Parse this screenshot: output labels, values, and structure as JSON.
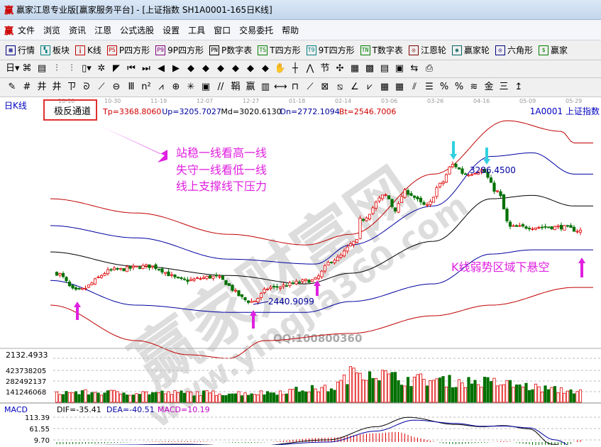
{
  "window": {
    "title": "赢家江恩专业版[赢家服务平台] - [上证指数  SH1A0001-165日K线]",
    "logo": "赢"
  },
  "menu": [
    "文件",
    "浏览",
    "资讯",
    "江恩",
    "公式选股",
    "设置",
    "工具",
    "窗口",
    "交易委托",
    "帮助"
  ],
  "toolbar1": [
    {
      "icon": "table-icon",
      "glyph": "▦",
      "label": "行情",
      "color": "#000080"
    },
    {
      "icon": "blocks-icon",
      "glyph": "▚",
      "label": "板块",
      "color": "#008080"
    },
    {
      "icon": "kline-icon",
      "glyph": "╽",
      "label": "K线",
      "color": "#c00000"
    },
    {
      "icon": "ps-icon",
      "glyph": "PS",
      "label": "P四方形",
      "color": "#c00000"
    },
    {
      "icon": "p9-icon",
      "glyph": "P9",
      "label": "9P四方形",
      "color": "#800080"
    },
    {
      "icon": "pn-icon",
      "glyph": "PN",
      "label": "P数字表",
      "color": "#000"
    },
    {
      "icon": "ts-icon",
      "glyph": "TS",
      "label": "T四方形",
      "color": "#008000"
    },
    {
      "icon": "t9-icon",
      "glyph": "T9",
      "label": "9T四方形",
      "color": "#008080"
    },
    {
      "icon": "tn-icon",
      "glyph": "TN",
      "label": "T数字表",
      "color": "#008000"
    },
    {
      "icon": "gann-wheel-icon",
      "glyph": "◎",
      "label": "江恩轮",
      "color": "#800000"
    },
    {
      "icon": "winner-wheel-icon",
      "glyph": "◉",
      "label": "赢家轮",
      "color": "#006060"
    },
    {
      "icon": "hexagon-icon",
      "glyph": "◎",
      "label": "六角形",
      "color": "#000080"
    },
    {
      "icon": "dollar-icon",
      "glyph": "$",
      "label": "赢家",
      "color": "#008000"
    }
  ],
  "toolbar2": [
    {
      "icon": "period-day-icon",
      "glyph": "日▾"
    },
    {
      "icon": "chart-type-icon",
      "glyph": "⌘"
    },
    {
      "icon": "doc-icon",
      "glyph": "▤"
    },
    {
      "icon": "indicator-icon",
      "glyph": "⫶"
    },
    {
      "icon": "indicator2-icon",
      "glyph": "⫶"
    },
    {
      "icon": "candle-icon",
      "glyph": "▯▾"
    },
    {
      "icon": "pattern-icon",
      "glyph": "✲"
    },
    {
      "icon": "triangle-flag-icon",
      "glyph": "◤"
    },
    {
      "icon": "first-icon",
      "glyph": "⏮"
    },
    {
      "icon": "last-icon",
      "glyph": "⏭"
    },
    {
      "icon": "left-icon",
      "glyph": "◀"
    },
    {
      "icon": "right-icon",
      "glyph": "▶"
    },
    {
      "icon": "diamond-left-icon",
      "glyph": "◆"
    },
    {
      "icon": "diamond-right-icon",
      "glyph": "◆"
    },
    {
      "icon": "diamond-up-icon",
      "glyph": "◆"
    },
    {
      "icon": "diamond-in-icon",
      "glyph": "◆"
    },
    {
      "icon": "diamond-out-icon",
      "glyph": "◆"
    },
    {
      "icon": "diamond-all-icon",
      "glyph": "◆"
    },
    {
      "icon": "hand-icon",
      "glyph": "✋"
    },
    {
      "icon": "crosshair-icon",
      "glyph": "┼"
    },
    {
      "icon": "line-icon",
      "glyph": "⋀"
    },
    {
      "icon": "node-icon",
      "glyph": "节"
    },
    {
      "icon": "cycle-icon",
      "glyph": "✣"
    },
    {
      "icon": "calendar-icon",
      "glyph": "▦"
    },
    {
      "icon": "calculator-icon",
      "glyph": "▩"
    },
    {
      "icon": "notes-icon",
      "glyph": "▤"
    },
    {
      "icon": "save-icon",
      "glyph": "▣"
    },
    {
      "icon": "transfer-icon",
      "glyph": "⇆"
    },
    {
      "icon": "export-icon",
      "glyph": "⎙"
    }
  ],
  "toolbar3": [
    {
      "icon": "pen-icon",
      "glyph": "✎"
    },
    {
      "icon": "grid-icon",
      "glyph": "#"
    },
    {
      "icon": "gold-icon",
      "glyph": "井"
    },
    {
      "icon": "gold2-icon",
      "glyph": "井"
    },
    {
      "icon": "fork-icon",
      "glyph": "ㄗ"
    },
    {
      "icon": "spiral-icon",
      "glyph": "ᘐ"
    },
    {
      "icon": "marker-icon",
      "glyph": "⟋"
    },
    {
      "icon": "circle-icon",
      "glyph": "⊖"
    },
    {
      "icon": "bars-icon",
      "glyph": "Ⅲ"
    },
    {
      "icon": "n2-icon",
      "glyph": "n²"
    },
    {
      "icon": "fan-icon",
      "glyph": "⩘"
    },
    {
      "icon": "target-icon",
      "glyph": "⊕"
    },
    {
      "icon": "asterisk-icon",
      "glyph": "✳"
    },
    {
      "icon": "box-icon",
      "glyph": "▣"
    },
    {
      "icon": "parallel-icon",
      "glyph": "//"
    },
    {
      "icon": "gann-icon",
      "glyph": "鞙"
    },
    {
      "icon": "winner-icon",
      "glyph": "赢"
    },
    {
      "icon": "ruler-icon",
      "glyph": "▥"
    },
    {
      "icon": "span-icon",
      "glyph": "⟷"
    },
    {
      "icon": "rect-icon",
      "glyph": "⊓"
    },
    {
      "icon": "gann-fan-icon",
      "glyph": "⟋"
    },
    {
      "icon": "gann-box-icon",
      "glyph": "⊠"
    },
    {
      "icon": "gann-square-icon",
      "glyph": "⧅"
    },
    {
      "icon": "angle-icon",
      "glyph": "∠"
    },
    {
      "icon": "wave-icon",
      "glyph": "⩗"
    },
    {
      "icon": "grid-box-icon",
      "glyph": "▦"
    },
    {
      "icon": "grid-box2-icon",
      "glyph": "▦"
    },
    {
      "icon": "slash-icon",
      "glyph": "⫽"
    },
    {
      "icon": "table2-icon",
      "glyph": "☰"
    },
    {
      "icon": "percent-line-icon",
      "glyph": "%"
    },
    {
      "icon": "percent-icon",
      "glyph": "%"
    },
    {
      "icon": "percent-red-icon",
      "glyph": "≋"
    },
    {
      "icon": "gold-coin-icon",
      "glyph": "金"
    },
    {
      "icon": "gold-lines-icon",
      "glyph": "三"
    },
    {
      "icon": "arrow-up-icon",
      "glyph": "↥"
    }
  ],
  "chart": {
    "period_label": "日K线",
    "indicator_name": "极反通道",
    "values": [
      {
        "text": "Tp=3368.8060",
        "color": "#d00000"
      },
      {
        "text": "Up=3205.7027",
        "color": "#0000a0"
      },
      {
        "text": "Md=3020.6130",
        "color": "#000000"
      },
      {
        "text": "Dn=2772.1094",
        "color": "#0000a0"
      },
      {
        "text": "Bt=2546.7006",
        "color": "#d00000"
      }
    ],
    "symbol": "1A0001  上证指数",
    "dates": [
      "10-10",
      "10-30",
      "11-19",
      "12-07",
      "12-27",
      "01-18",
      "02-14",
      "03-06",
      "03-26",
      "04-16",
      "05-09",
      "05-29"
    ],
    "annotation_lines": [
      "站稳一线看高一线",
      "失守一线看低一线",
      "线上支撑线下压力"
    ],
    "annotation_weak": "K线弱势区域下悬空",
    "low_label": "2440.9099",
    "high_label": "3286.4500",
    "price_axis_label": "2132.4933",
    "volume_axis": [
      "423738205",
      "282492137",
      "141246068"
    ],
    "macd": {
      "name": "MACD",
      "dif": "DIF=-35.41",
      "dea": "DEA=-40.51",
      "macd": "MACD=10.19",
      "axis": [
        "113.39",
        "61.55",
        "9.70"
      ]
    },
    "colors": {
      "up": "#e00000",
      "down": "#007000",
      "band_outer": "#c00000",
      "band_inner": "#0000a0",
      "mid": "#000000",
      "annotation": "#e020e0",
      "highlight_arrow": "#30d0e0"
    }
  },
  "watermark": {
    "brand": "赢家财富网",
    "url": "www.yingjia360.com",
    "qq": "QQ:100800360"
  },
  "chart_data": {
    "type": "candlestick",
    "bars": 165,
    "close_keypoints": [
      [
        0,
        2614
      ],
      [
        6,
        2505
      ],
      [
        18,
        2635
      ],
      [
        29,
        2657
      ],
      [
        40,
        2570
      ],
      [
        49,
        2592
      ],
      [
        61,
        2441
      ],
      [
        67,
        2527
      ],
      [
        80,
        2570
      ],
      [
        87,
        2700
      ],
      [
        94,
        2809
      ],
      [
        95,
        2939
      ],
      [
        103,
        3090
      ],
      [
        106,
        3003
      ],
      [
        109,
        3112
      ],
      [
        116,
        3025
      ],
      [
        120,
        3155
      ],
      [
        124,
        3277
      ],
      [
        128,
        3220
      ],
      [
        133,
        3242
      ],
      [
        138,
        3112
      ],
      [
        142,
        2896
      ],
      [
        151,
        2896
      ],
      [
        158,
        2896
      ],
      [
        164,
        2874
      ]
    ],
    "bands": {
      "tp": [
        [
          0,
          3069
        ],
        [
          27,
          2982
        ],
        [
          56,
          2852
        ],
        [
          80,
          2787
        ],
        [
          94,
          2852
        ],
        [
          120,
          3220
        ],
        [
          143,
          3546
        ],
        [
          160,
          3481
        ],
        [
          164,
          3410
        ]
      ],
      "up": [
        [
          0,
          2905
        ],
        [
          27,
          2830
        ],
        [
          56,
          2700
        ],
        [
          83,
          2670
        ],
        [
          94,
          2787
        ],
        [
          120,
          3025
        ],
        [
          138,
          3328
        ],
        [
          151,
          3350
        ],
        [
          164,
          3220
        ]
      ],
      "md": [
        [
          0,
          2744
        ],
        [
          27,
          2657
        ],
        [
          56,
          2600
        ],
        [
          80,
          2549
        ],
        [
          94,
          2614
        ],
        [
          120,
          2809
        ],
        [
          138,
          3069
        ],
        [
          151,
          3090
        ],
        [
          164,
          3025
        ]
      ],
      "dn": [
        [
          0,
          2570
        ],
        [
          27,
          2419
        ],
        [
          56,
          2375
        ],
        [
          80,
          2375
        ],
        [
          94,
          2441
        ],
        [
          120,
          2549
        ],
        [
          138,
          2731
        ],
        [
          151,
          2757
        ],
        [
          164,
          2757
        ]
      ],
      "bt": [
        [
          0,
          2419
        ],
        [
          27,
          2202
        ],
        [
          43,
          2116
        ],
        [
          56,
          2094
        ],
        [
          67,
          2202
        ],
        [
          94,
          2246
        ],
        [
          120,
          2354
        ],
        [
          138,
          2419
        ],
        [
          164,
          2527
        ]
      ]
    },
    "volume_keypoints": [
      [
        0,
        130000000
      ],
      [
        60,
        120000000
      ],
      [
        85,
        180000000
      ],
      [
        95,
        420000000
      ],
      [
        110,
        300000000
      ],
      [
        130,
        270000000
      ],
      [
        164,
        150000000
      ]
    ],
    "dif_keypoints": [
      [
        0,
        -20
      ],
      [
        40,
        -10
      ],
      [
        60,
        -20
      ],
      [
        85,
        10
      ],
      [
        100,
        70
      ],
      [
        110,
        113
      ],
      [
        125,
        80
      ],
      [
        133,
        70
      ],
      [
        140,
        75
      ],
      [
        148,
        60
      ],
      [
        155,
        -10
      ],
      [
        164,
        -35
      ]
    ],
    "dea_keypoints": [
      [
        0,
        -15
      ],
      [
        40,
        -12
      ],
      [
        60,
        -18
      ],
      [
        85,
        0
      ],
      [
        100,
        50
      ],
      [
        112,
        100
      ],
      [
        125,
        85
      ],
      [
        133,
        72
      ],
      [
        140,
        73
      ],
      [
        148,
        65
      ],
      [
        156,
        10
      ],
      [
        164,
        -40
      ]
    ]
  }
}
